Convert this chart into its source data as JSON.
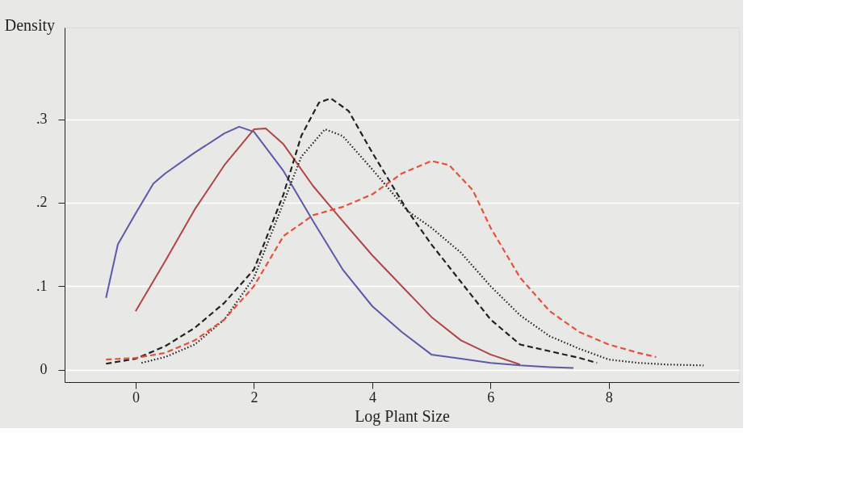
{
  "chart_data": {
    "type": "line",
    "xlabel": "Log Plant Size",
    "ylabel": "Density",
    "xlim": [
      -1.2,
      10.2
    ],
    "ylim": [
      -0.015,
      0.41
    ],
    "xticks": [
      0,
      2,
      4,
      6,
      8
    ],
    "yticks": [
      {
        "value": 0,
        "label": "0"
      },
      {
        "value": 0.1,
        "label": ".1"
      },
      {
        "value": 0.2,
        "label": ".2"
      },
      {
        "value": 0.3,
        "label": ".3"
      }
    ],
    "grid": "y",
    "marker": "none",
    "series": [
      {
        "color": "#5a5aa8",
        "line_style": "solid",
        "x": [
          -0.5,
          -0.3,
          0,
          0.3,
          0.5,
          1,
          1.5,
          1.75,
          2,
          2.5,
          3,
          3.5,
          4,
          4.5,
          5,
          5.5,
          6,
          6.5,
          7,
          7.4
        ],
        "values": [
          0.086,
          0.15,
          0.187,
          0.223,
          0.235,
          0.26,
          0.283,
          0.291,
          0.285,
          0.238,
          0.178,
          0.12,
          0.076,
          0.045,
          0.018,
          0.013,
          0.008,
          0.005,
          0.003,
          0.002
        ]
      },
      {
        "color": "#b04545",
        "line_style": "solid",
        "x": [
          0,
          0.5,
          1,
          1.5,
          2,
          2.2,
          2.5,
          3,
          3.5,
          4,
          4.5,
          5,
          5.5,
          6,
          6.5
        ],
        "values": [
          0.07,
          0.13,
          0.192,
          0.245,
          0.288,
          0.289,
          0.27,
          0.22,
          0.178,
          0.137,
          0.1,
          0.063,
          0.035,
          0.018,
          0.006
        ]
      },
      {
        "color": "#222222",
        "line_style": "dashed",
        "x": [
          -0.5,
          0,
          0.5,
          1,
          1.5,
          2,
          2.5,
          2.8,
          3.1,
          3.3,
          3.6,
          4,
          4.6,
          5,
          5.5,
          6,
          6.5,
          7,
          7.5,
          7.8
        ],
        "values": [
          0.007,
          0.013,
          0.028,
          0.05,
          0.08,
          0.12,
          0.21,
          0.28,
          0.32,
          0.325,
          0.31,
          0.26,
          0.19,
          0.15,
          0.105,
          0.06,
          0.03,
          0.022,
          0.014,
          0.008
        ]
      },
      {
        "color": "#222222",
        "line_style": "dotted",
        "x": [
          0.1,
          0.5,
          1,
          1.5,
          2,
          2.5,
          2.8,
          3.2,
          3.5,
          4,
          4.6,
          5,
          5.5,
          6,
          6.5,
          7,
          7.5,
          8,
          8.5,
          9,
          9.6
        ],
        "values": [
          0.008,
          0.015,
          0.03,
          0.06,
          0.11,
          0.2,
          0.255,
          0.288,
          0.28,
          0.24,
          0.19,
          0.17,
          0.14,
          0.1,
          0.065,
          0.04,
          0.025,
          0.012,
          0.008,
          0.006,
          0.005
        ]
      },
      {
        "color": "#e8503a",
        "line_style": "dashed",
        "x": [
          -0.5,
          0,
          0.5,
          1,
          1.5,
          2,
          2.5,
          3,
          3.5,
          4,
          4.5,
          5,
          5.3,
          5.7,
          6,
          6.5,
          7,
          7.5,
          8,
          8.5,
          8.8
        ],
        "values": [
          0.012,
          0.014,
          0.02,
          0.035,
          0.06,
          0.1,
          0.16,
          0.185,
          0.195,
          0.21,
          0.235,
          0.25,
          0.245,
          0.215,
          0.17,
          0.11,
          0.07,
          0.045,
          0.03,
          0.02,
          0.015
        ]
      }
    ]
  }
}
